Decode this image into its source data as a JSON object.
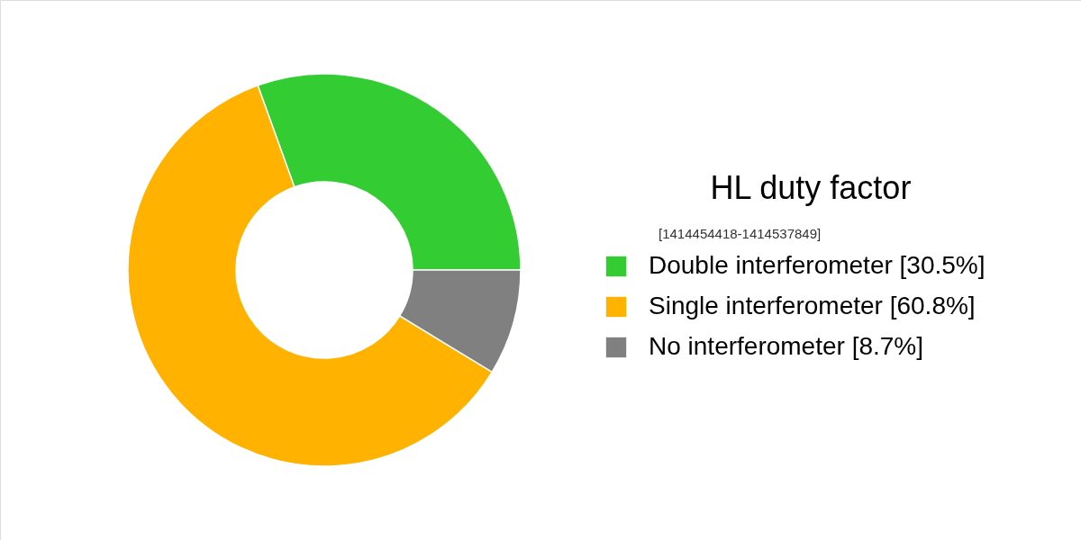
{
  "chart_data": {
    "type": "donut",
    "title": "HL duty factor",
    "subtitle": "[1414454418-1414537849]",
    "categories": [
      "Double interferometer [30.5%]",
      "Single interferometer [60.8%]",
      "No interferometer [8.7%]"
    ],
    "values": [
      30.5,
      60.8,
      8.7
    ],
    "colors": [
      "#33cc33",
      "#ffb200",
      "#808080"
    ],
    "legend": "right"
  }
}
